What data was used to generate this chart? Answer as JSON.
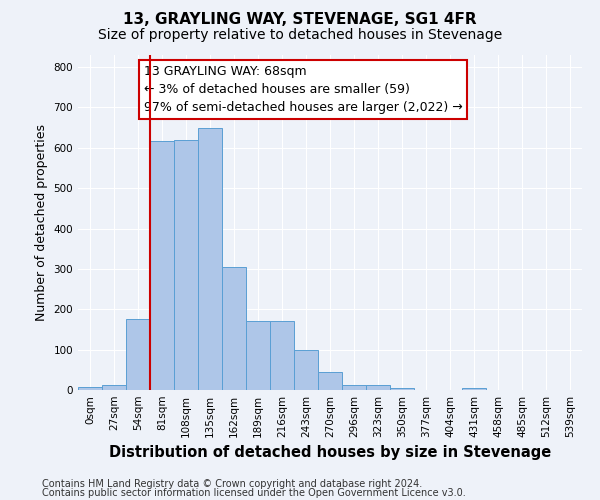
{
  "title": "13, GRAYLING WAY, STEVENAGE, SG1 4FR",
  "subtitle": "Size of property relative to detached houses in Stevenage",
  "xlabel": "Distribution of detached houses by size in Stevenage",
  "ylabel": "Number of detached properties",
  "bin_labels": [
    "0sqm",
    "27sqm",
    "54sqm",
    "81sqm",
    "108sqm",
    "135sqm",
    "162sqm",
    "189sqm",
    "216sqm",
    "243sqm",
    "270sqm",
    "296sqm",
    "323sqm",
    "350sqm",
    "377sqm",
    "404sqm",
    "431sqm",
    "458sqm",
    "485sqm",
    "512sqm",
    "539sqm"
  ],
  "bar_values": [
    7,
    12,
    175,
    618,
    620,
    648,
    305,
    172,
    172,
    100,
    45,
    13,
    13,
    5,
    0,
    0,
    5,
    0,
    0,
    0,
    0
  ],
  "bar_color": "#aec6e8",
  "bar_edge_color": "#5a9fd4",
  "vline_index": 3,
  "annotation_text": "13 GRAYLING WAY: 68sqm\n← 3% of detached houses are smaller (59)\n97% of semi-detached houses are larger (2,022) →",
  "annotation_box_color": "#ffffff",
  "annotation_box_edge": "#cc0000",
  "vline_color": "#cc0000",
  "ylim": [
    0,
    830
  ],
  "yticks": [
    0,
    100,
    200,
    300,
    400,
    500,
    600,
    700,
    800
  ],
  "footer_line1": "Contains HM Land Registry data © Crown copyright and database right 2024.",
  "footer_line2": "Contains public sector information licensed under the Open Government Licence v3.0.",
  "background_color": "#eef2f9",
  "grid_color": "#ffffff",
  "title_fontsize": 11,
  "subtitle_fontsize": 10,
  "axis_label_fontsize": 9,
  "tick_fontsize": 7.5,
  "footer_fontsize": 7
}
